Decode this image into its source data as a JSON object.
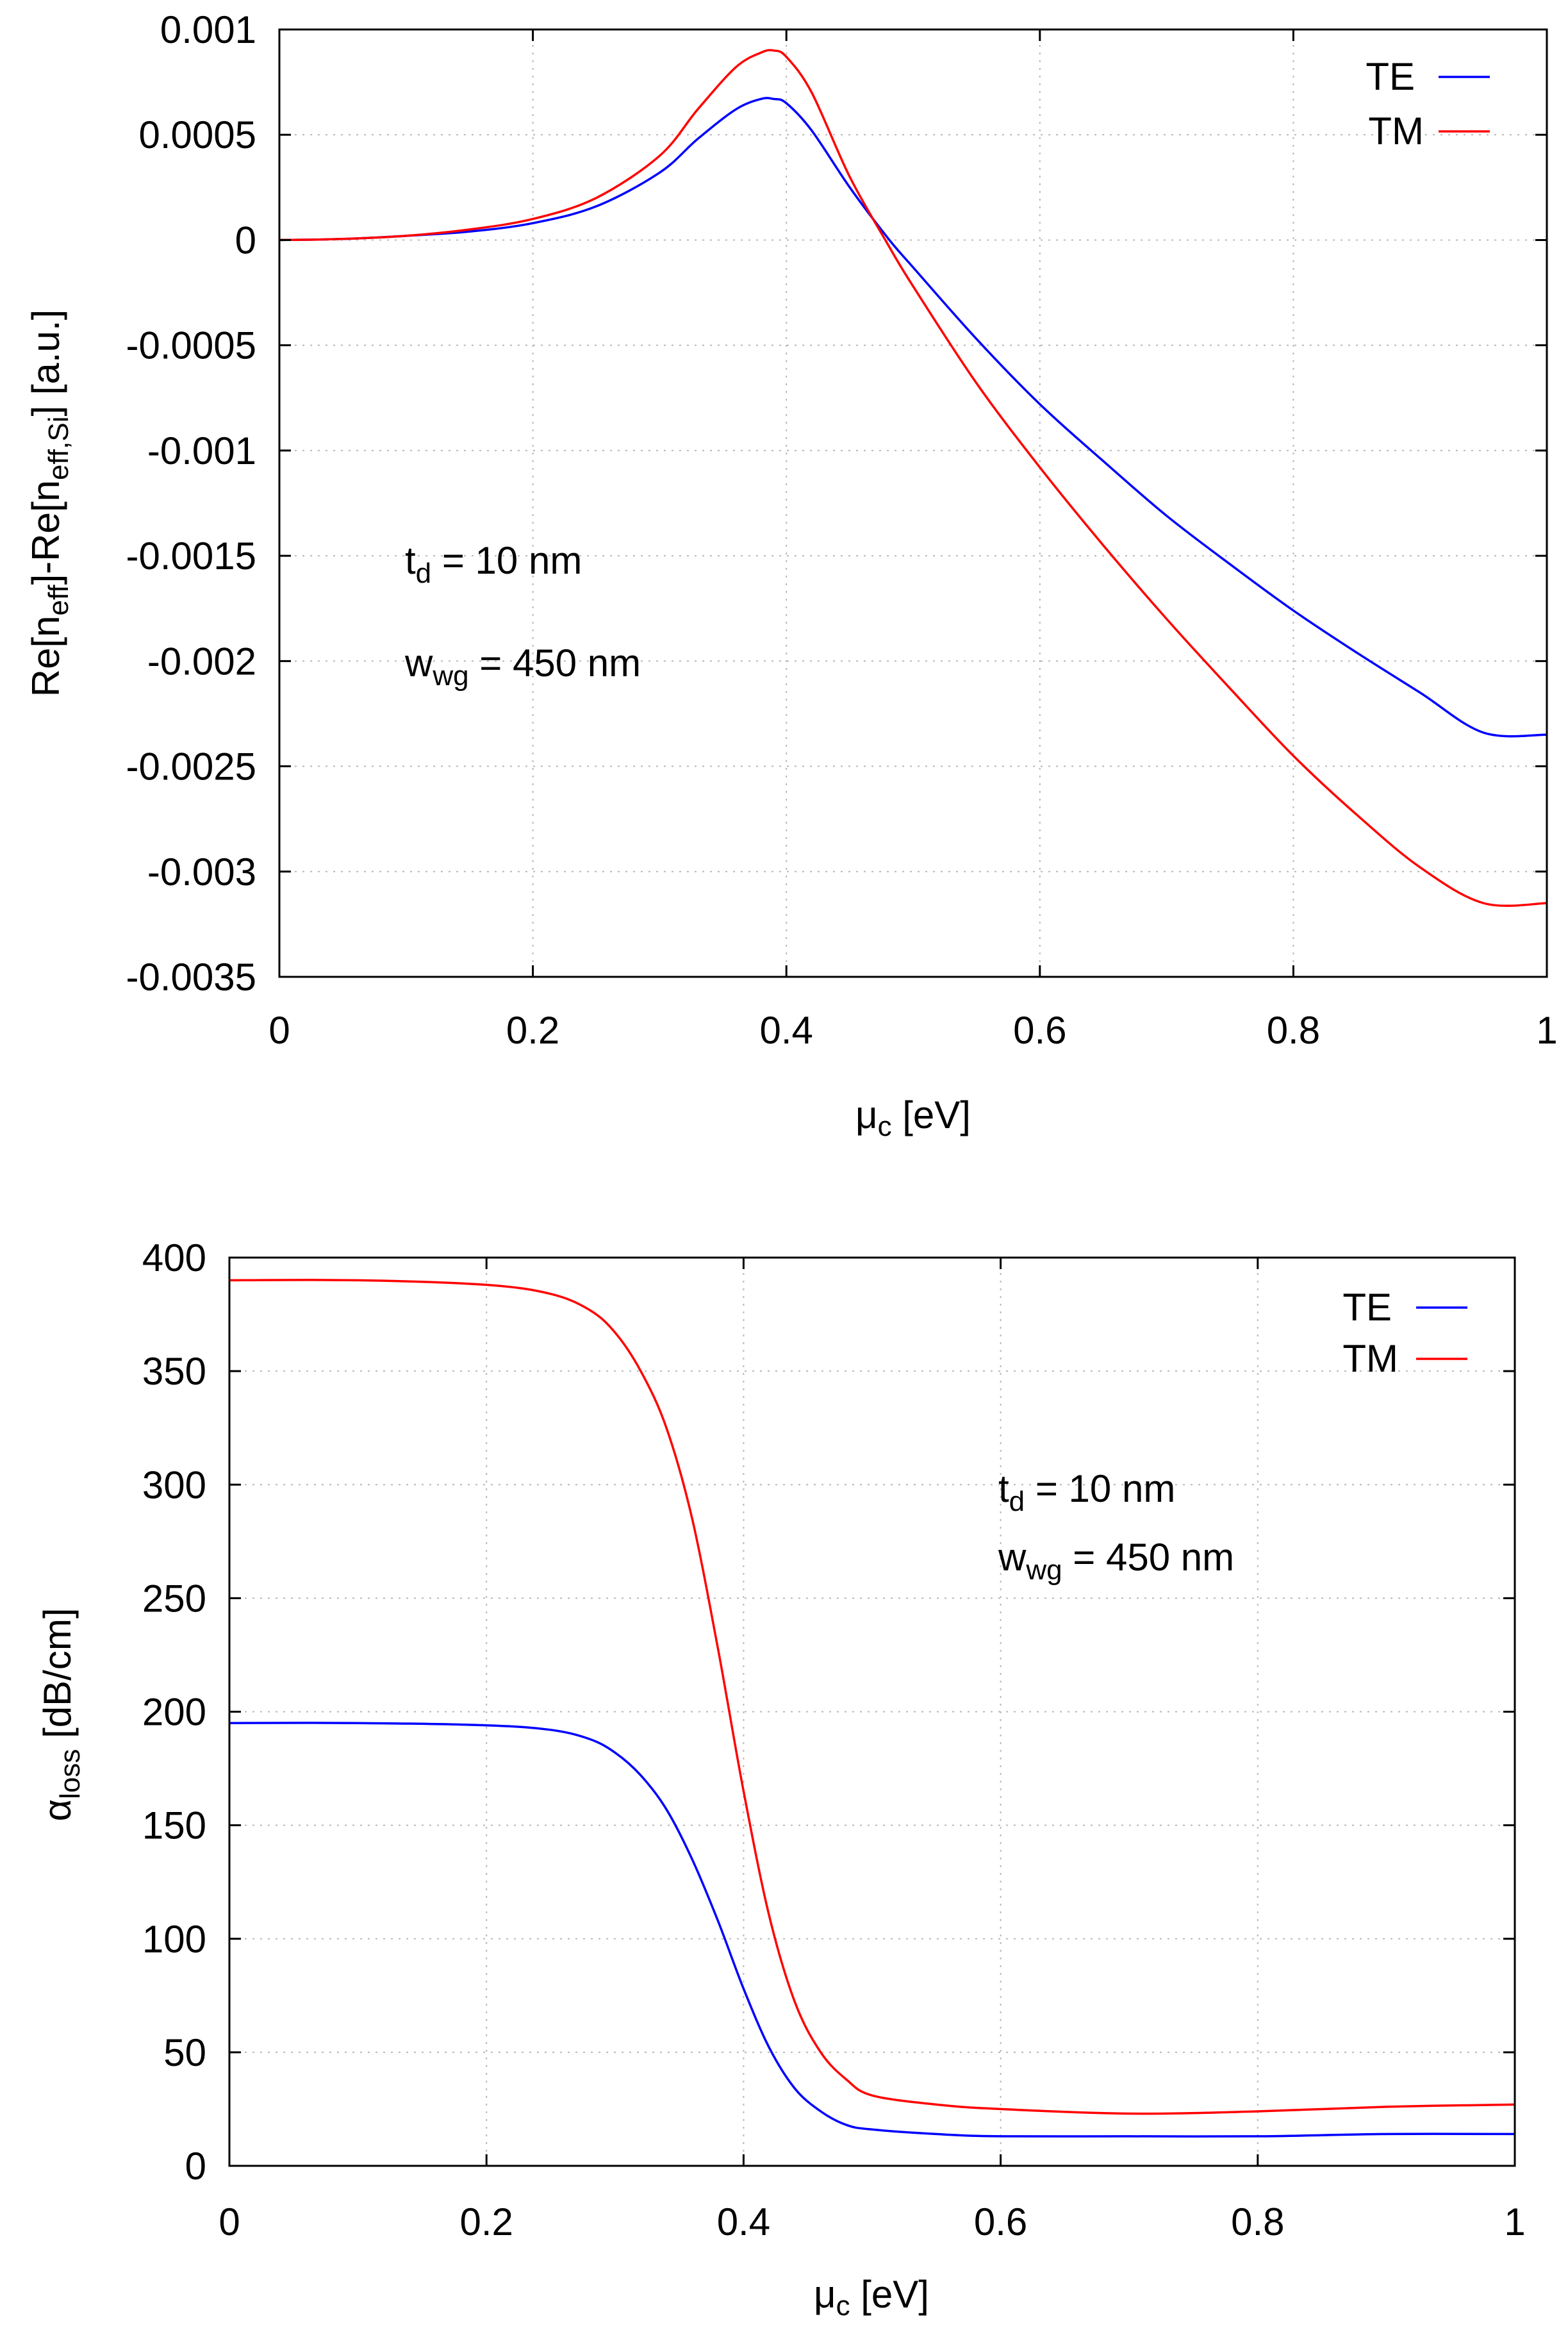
{
  "chart_data": [
    {
      "type": "line",
      "ylabel_parts": [
        "Re[n",
        "eff",
        "]-Re[n",
        "eff,Si",
        "] [a.u.]"
      ],
      "xlabel_parts": [
        "μ",
        "c",
        " [eV]"
      ],
      "xlim": [
        0,
        1
      ],
      "ylim": [
        -0.0035,
        0.001
      ],
      "x_ticks": [
        "0",
        "0.2",
        "0.4",
        "0.6",
        "0.8",
        "1"
      ],
      "x_tick_values": [
        0,
        0.2,
        0.4,
        0.6,
        0.8,
        1
      ],
      "y_ticks": [
        "0.001",
        "0.0005",
        "0",
        "-0.0005",
        "-0.001",
        "-0.0015",
        "-0.002",
        "-0.0025",
        "-0.003",
        "-0.0035"
      ],
      "y_tick_values": [
        0.001,
        0.0005,
        0,
        -0.0005,
        -0.001,
        -0.0015,
        -0.002,
        -0.0025,
        -0.003,
        -0.0035
      ],
      "grid": true,
      "legend_position": "top-right",
      "annotations": [
        {
          "main": "t",
          "sub": "d",
          "rest": " = 10 nm",
          "x": 0.1,
          "y": -0.0015
        },
        {
          "main": "w",
          "sub": "wg",
          "rest": " = 450 nm",
          "x": 0.1,
          "y": -0.002
        }
      ],
      "series": [
        {
          "name": "TE",
          "color": "#0000ff",
          "x": [
            0,
            0.05,
            0.1,
            0.15,
            0.2,
            0.25,
            0.3,
            0.33,
            0.36,
            0.38,
            0.39,
            0.4,
            0.42,
            0.45,
            0.48,
            0.5,
            0.55,
            0.6,
            0.65,
            0.7,
            0.75,
            0.8,
            0.85,
            0.9,
            0.95,
            1.0
          ],
          "values": [
            0,
            5e-06,
            2e-05,
            4e-05,
            8e-05,
            0.00016,
            0.00032,
            0.00048,
            0.00062,
            0.00067,
            0.00067,
            0.00065,
            0.00052,
            0.00025,
            1e-05,
            -0.00013,
            -0.00047,
            -0.00078,
            -0.00105,
            -0.00131,
            -0.00154,
            -0.00176,
            -0.00196,
            -0.00215,
            -0.00234,
            -0.00235
          ]
        },
        {
          "name": "TM",
          "color": "#ff0000",
          "x": [
            0,
            0.05,
            0.1,
            0.15,
            0.2,
            0.25,
            0.3,
            0.33,
            0.36,
            0.38,
            0.39,
            0.4,
            0.42,
            0.45,
            0.48,
            0.5,
            0.55,
            0.6,
            0.65,
            0.7,
            0.75,
            0.8,
            0.85,
            0.9,
            0.95,
            1.0
          ],
          "values": [
            0,
            5e-06,
            2e-05,
            5e-05,
            0.0001,
            0.0002,
            0.0004,
            0.00062,
            0.00082,
            0.00089,
            0.0009,
            0.00087,
            0.0007,
            0.0003,
            -2e-05,
            -0.00022,
            -0.00068,
            -0.00108,
            -0.00145,
            -0.0018,
            -0.00213,
            -0.00245,
            -0.00273,
            -0.00298,
            -0.00315,
            -0.00315
          ]
        }
      ]
    },
    {
      "type": "line",
      "ylabel_parts": [
        "α",
        "loss",
        " [dB/cm]"
      ],
      "xlabel_parts": [
        "μ",
        "c",
        " [eV]"
      ],
      "xlim": [
        0,
        1
      ],
      "ylim": [
        0,
        400
      ],
      "x_ticks": [
        "0",
        "0.2",
        "0.4",
        "0.6",
        "0.8",
        "1"
      ],
      "x_tick_values": [
        0,
        0.2,
        0.4,
        0.6,
        0.8,
        1
      ],
      "y_ticks": [
        "400",
        "350",
        "300",
        "250",
        "200",
        "150",
        "100",
        "50",
        "0"
      ],
      "y_tick_values": [
        400,
        350,
        300,
        250,
        200,
        150,
        100,
        50,
        0
      ],
      "grid": true,
      "legend_position": "top-right",
      "annotations": [
        {
          "main": "t",
          "sub": "d",
          "rest": " = 10 nm",
          "x": 0.6,
          "y": 298
        },
        {
          "main": "w",
          "sub": "wg",
          "rest": " = 450 nm",
          "x": 0.6,
          "y": 265
        }
      ],
      "series": [
        {
          "name": "TE",
          "color": "#0000ff",
          "x": [
            0,
            0.1,
            0.2,
            0.25,
            0.28,
            0.3,
            0.32,
            0.34,
            0.36,
            0.38,
            0.4,
            0.42,
            0.44,
            0.46,
            0.48,
            0.5,
            0.55,
            0.6,
            0.7,
            0.8,
            0.9,
            1.0
          ],
          "values": [
            195,
            195,
            194,
            192,
            188,
            182,
            172,
            157,
            135,
            108,
            78,
            52,
            34,
            24,
            18,
            16,
            14,
            13,
            13,
            13,
            14,
            14
          ]
        },
        {
          "name": "TM",
          "color": "#ff0000",
          "x": [
            0,
            0.1,
            0.2,
            0.25,
            0.28,
            0.3,
            0.32,
            0.34,
            0.36,
            0.38,
            0.4,
            0.42,
            0.44,
            0.46,
            0.48,
            0.5,
            0.55,
            0.6,
            0.7,
            0.8,
            0.9,
            1.0
          ],
          "values": [
            390,
            390,
            388,
            384,
            377,
            367,
            350,
            325,
            285,
            228,
            165,
            110,
            72,
            50,
            38,
            31,
            27,
            25,
            23,
            24,
            26,
            27
          ]
        }
      ]
    }
  ]
}
